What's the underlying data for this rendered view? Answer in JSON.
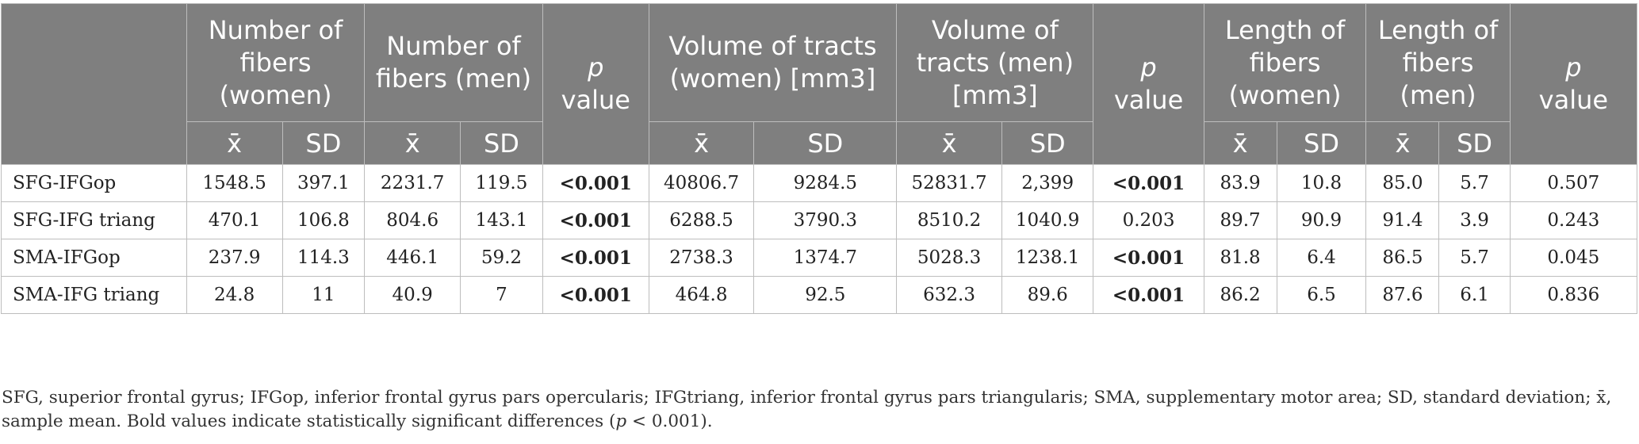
{
  "table": {
    "headers": {
      "col_blank": "",
      "fibers_women": "Number of fibers (women)",
      "fibers_men": "Number of fibers (men)",
      "p_value_a": "value",
      "volume_women": "Volume of tracts (women) [mm3]",
      "volume_men": "Volume of tracts (men) [mm3]",
      "p_value_b": "value",
      "length_women": "Length of fibers (women)",
      "length_men": "Length of fibers (men)",
      "p_value_c": "value",
      "p_letter": "p",
      "mean_symbol": "x̄",
      "sd_label": "SD"
    },
    "rows": [
      {
        "label": "SFG-IFGop",
        "cells": [
          "1548.5",
          "397.1",
          "2231.7",
          "119.5",
          "<0.001",
          "40806.7",
          "9284.5",
          "52831.7",
          "2,399",
          "<0.001",
          "83.9",
          "10.8",
          "85.0",
          "5.7",
          "0.507"
        ]
      },
      {
        "label": "SFG-IFG triang",
        "cells": [
          "470.1",
          "106.8",
          "804.6",
          "143.1",
          "<0.001",
          "6288.5",
          "3790.3",
          "8510.2",
          "1040.9",
          "0.203",
          "89.7",
          "90.9",
          "91.4",
          "3.9",
          "0.243"
        ]
      },
      {
        "label": "SMA-IFGop",
        "cells": [
          "237.9",
          "114.3",
          "446.1",
          "59.2",
          "<0.001",
          "2738.3",
          "1374.7",
          "5028.3",
          "1238.1",
          "<0.001",
          "81.8",
          "6.4",
          "86.5",
          "5.7",
          "0.045"
        ]
      },
      {
        "label": "SMA-IFG triang",
        "cells": [
          "24.8",
          "11",
          "40.9",
          "7",
          "<0.001",
          "464.8",
          "92.5",
          "632.3",
          "89.6",
          "<0.001",
          "86.2",
          "6.5",
          "87.6",
          "6.1",
          "0.836"
        ]
      }
    ]
  },
  "footnote": {
    "text_before": "SFG, superior frontal gyrus; IFGop, inferior frontal gyrus pars opercularis; IFGtriang, inferior frontal gyrus pars triangularis; SMA, supplementary motor area; SD, standard deviation; x̄, sample mean. Bold values indicate statistically significant differences (",
    "p_letter": "p",
    "text_after": " < 0.001)."
  }
}
